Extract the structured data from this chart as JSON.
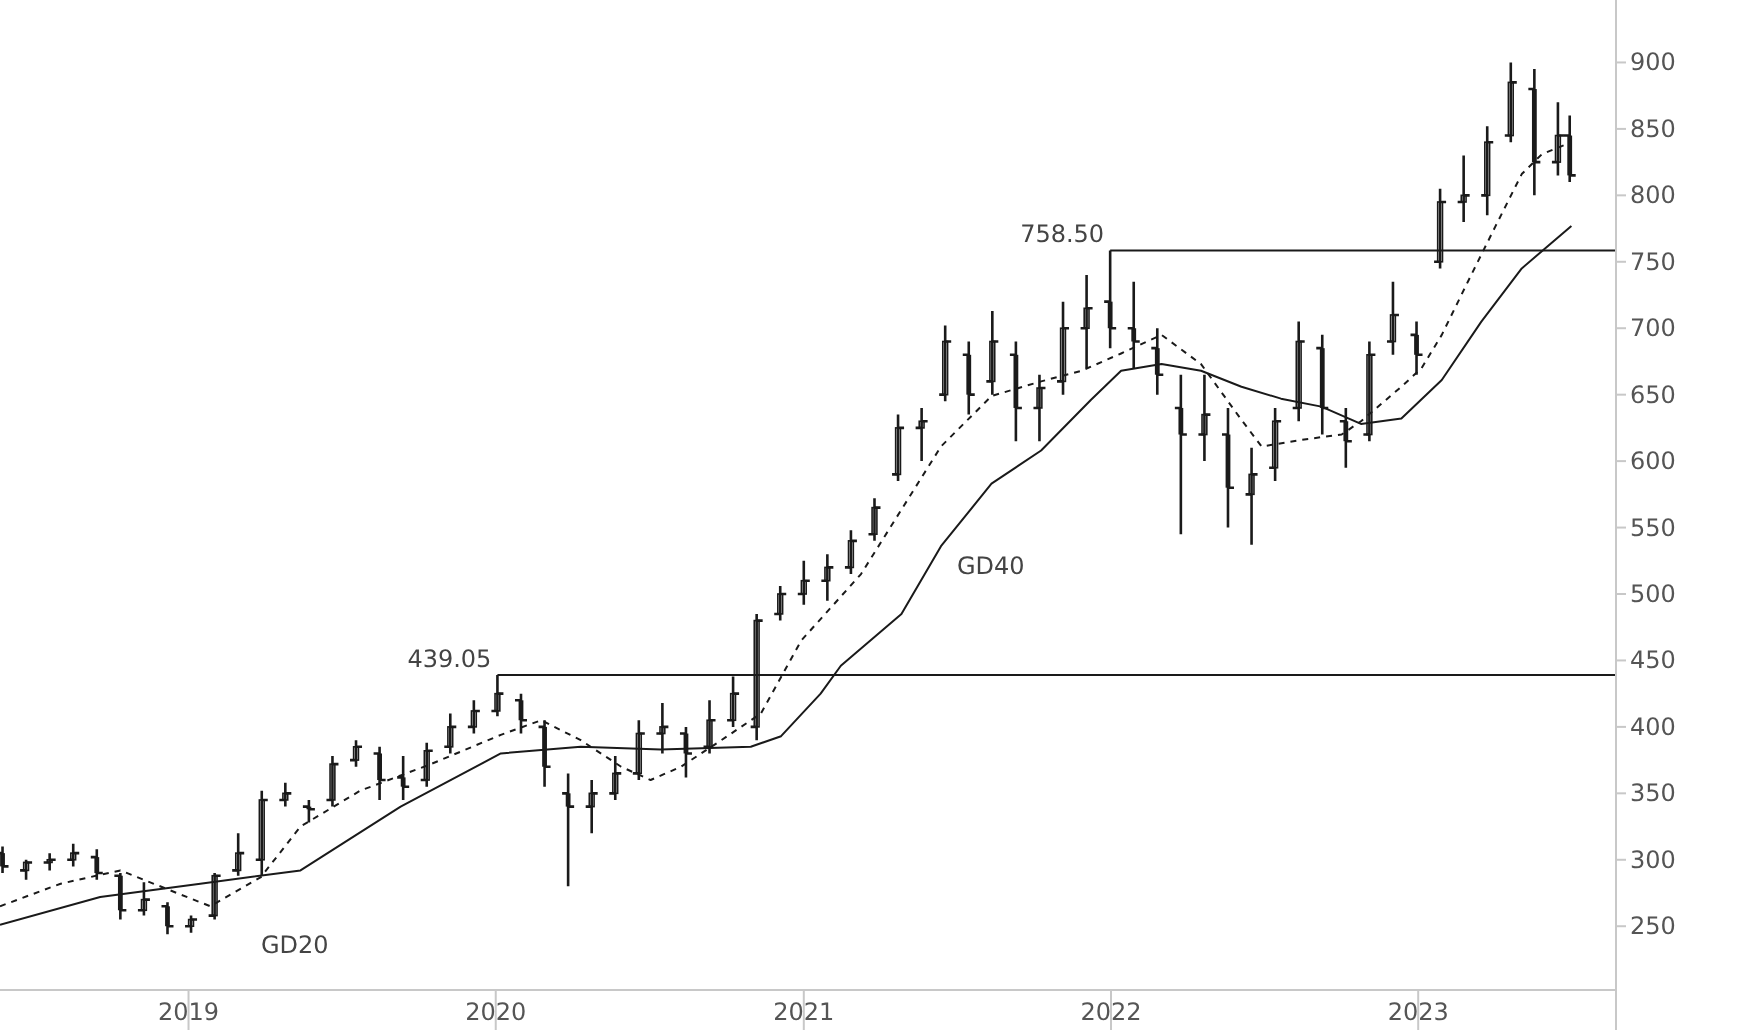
{
  "chart_data": {
    "type": "candlestick",
    "x": [
      "2018-05-25",
      "2018-06-22",
      "2018-07-20",
      "2018-08-17",
      "2018-09-14",
      "2018-10-12",
      "2018-11-09",
      "2018-12-07",
      "2019-01-04",
      "2019-02-01",
      "2019-03-01",
      "2019-03-29",
      "2019-04-26",
      "2019-05-24",
      "2019-06-21",
      "2019-07-19",
      "2019-08-16",
      "2019-09-13",
      "2019-10-11",
      "2019-11-08",
      "2019-12-06",
      "2020-01-03",
      "2020-01-31",
      "2020-02-28",
      "2020-03-27",
      "2020-04-24",
      "2020-05-22",
      "2020-06-19",
      "2020-07-17",
      "2020-08-14",
      "2020-09-11",
      "2020-10-09",
      "2020-11-06",
      "2020-12-04",
      "2021-01-01",
      "2021-01-29",
      "2021-02-26",
      "2021-03-26",
      "2021-04-23",
      "2021-05-21",
      "2021-06-18",
      "2021-07-16",
      "2021-08-13",
      "2021-09-10",
      "2021-10-08",
      "2021-11-05",
      "2021-12-03",
      "2021-12-31",
      "2022-01-28",
      "2022-02-25",
      "2022-03-25",
      "2022-04-22",
      "2022-05-20",
      "2022-06-17",
      "2022-07-15",
      "2022-08-12",
      "2022-09-09",
      "2022-10-07",
      "2022-11-04",
      "2022-12-02",
      "2022-12-30",
      "2023-01-27",
      "2023-02-24",
      "2023-03-24",
      "2023-04-21",
      "2023-05-19",
      "2023-06-16",
      "2023-06-30"
    ],
    "ohlc": [
      [
        305,
        310,
        290,
        295
      ],
      [
        292,
        300,
        285,
        298
      ],
      [
        298,
        305,
        292,
        300
      ],
      [
        300,
        312,
        295,
        305
      ],
      [
        302,
        308,
        285,
        290
      ],
      [
        288,
        290,
        255,
        262
      ],
      [
        262,
        283,
        258,
        270
      ],
      [
        265,
        268,
        244,
        250
      ],
      [
        250,
        258,
        245,
        255
      ],
      [
        258,
        290,
        255,
        288
      ],
      [
        292,
        320,
        288,
        305
      ],
      [
        300,
        352,
        288,
        345
      ],
      [
        345,
        358,
        340,
        350
      ],
      [
        340,
        345,
        328,
        338
      ],
      [
        345,
        378,
        340,
        372
      ],
      [
        375,
        390,
        370,
        385
      ],
      [
        380,
        385,
        345,
        360
      ],
      [
        362,
        378,
        345,
        355
      ],
      [
        360,
        388,
        355,
        382
      ],
      [
        385,
        410,
        380,
        400
      ],
      [
        400,
        420,
        395,
        412
      ],
      [
        412,
        439.05,
        408,
        425
      ],
      [
        420,
        425,
        395,
        405
      ],
      [
        400,
        405,
        355,
        370
      ],
      [
        350,
        365,
        280,
        340
      ],
      [
        340,
        360,
        320,
        350
      ],
      [
        350,
        378,
        345,
        365
      ],
      [
        365,
        405,
        360,
        395
      ],
      [
        395,
        418,
        380,
        400
      ],
      [
        395,
        400,
        362,
        380
      ],
      [
        385,
        420,
        380,
        405
      ],
      [
        405,
        438,
        400,
        425
      ],
      [
        400,
        485,
        390,
        480
      ],
      [
        485,
        506,
        480,
        500
      ],
      [
        500,
        525,
        492,
        510
      ],
      [
        510,
        530,
        495,
        520
      ],
      [
        520,
        548,
        515,
        540
      ],
      [
        545,
        572,
        540,
        565
      ],
      [
        590,
        635,
        585,
        625
      ],
      [
        625,
        640,
        600,
        630
      ],
      [
        650,
        702,
        645,
        690
      ],
      [
        680,
        690,
        635,
        650
      ],
      [
        660,
        713,
        650,
        690
      ],
      [
        680,
        690,
        615,
        640
      ],
      [
        640,
        665,
        615,
        655
      ],
      [
        660,
        720,
        650,
        700
      ],
      [
        700,
        740,
        670,
        715
      ],
      [
        720,
        758.5,
        685,
        700
      ],
      [
        700,
        735,
        670,
        690
      ],
      [
        685,
        700,
        650,
        665
      ],
      [
        640,
        665,
        545,
        620
      ],
      [
        620,
        665,
        600,
        635
      ],
      [
        620,
        640,
        550,
        580
      ],
      [
        575,
        610,
        537,
        590
      ],
      [
        595,
        640,
        585,
        630
      ],
      [
        640,
        705,
        630,
        690
      ],
      [
        685,
        695,
        620,
        640
      ],
      [
        630,
        640,
        595,
        615
      ],
      [
        620,
        690,
        615,
        680
      ],
      [
        690,
        735,
        680,
        710
      ],
      [
        695,
        705,
        665,
        680
      ],
      [
        750,
        805,
        745,
        795
      ],
      [
        795,
        830,
        780,
        800
      ],
      [
        800,
        852,
        785,
        840
      ],
      [
        845,
        900,
        840,
        885
      ],
      [
        880,
        895,
        800,
        825
      ],
      [
        825,
        870,
        815,
        845
      ],
      [
        845,
        860,
        810,
        815
      ]
    ],
    "color": "#1a1a1a",
    "series": [
      {
        "name": "GD20",
        "type": "line",
        "color": "#1a1a1a",
        "line_style": "dashed",
        "x": [
          "2018-05-22",
          "2018-08-02",
          "2018-10-12",
          "2018-12-22",
          "2019-01-27",
          "2019-03-28",
          "2019-05-14",
          "2019-07-24",
          "2019-10-16",
          "2020-01-07",
          "2020-02-24",
          "2020-04-11",
          "2020-05-29",
          "2020-07-03",
          "2020-08-08",
          "2020-09-25",
          "2020-11-11",
          "2020-12-29",
          "2021-03-10",
          "2021-06-13",
          "2021-08-12",
          "2021-10-10",
          "2021-11-27",
          "2022-01-13",
          "2022-03-02",
          "2022-04-18",
          "2022-06-05",
          "2022-06-29",
          "2022-08-15",
          "2022-10-02",
          "2022-10-25",
          "2022-12-12",
          "2023-01-05",
          "2023-01-29",
          "2023-03-01",
          "2023-04-03",
          "2023-05-04",
          "2023-05-28",
          "2023-07-02"
        ],
        "values": [
          265,
          282,
          292,
          274,
          265,
          287,
          325,
          352,
          372,
          394,
          405,
          390,
          370,
          360,
          370,
          390,
          410,
          465,
          515,
          611,
          649,
          660,
          668,
          681,
          695,
          673,
          631,
          611,
          616,
          620,
          630,
          656,
          670,
          695,
          735,
          777,
          816,
          831,
          840
        ]
      },
      {
        "name": "GD40",
        "type": "line",
        "color": "#1a1a1a",
        "line_style": "solid",
        "x": [
          "2018-05-22",
          "2018-09-18",
          "2019-01-15",
          "2019-05-14",
          "2019-09-10",
          "2020-01-07",
          "2020-04-11",
          "2020-07-15",
          "2020-10-30",
          "2020-12-05",
          "2021-01-21",
          "2021-02-14",
          "2021-04-27",
          "2021-06-13",
          "2021-08-12",
          "2021-10-10",
          "2021-12-08",
          "2022-01-13",
          "2022-03-02",
          "2022-04-18",
          "2022-06-05",
          "2022-07-22",
          "2022-09-08",
          "2022-10-25",
          "2022-12-12",
          "2023-01-29",
          "2023-03-17",
          "2023-05-04",
          "2023-07-02"
        ],
        "values": [
          251,
          272,
          282,
          292,
          340,
          380,
          385,
          383,
          385,
          393,
          425,
          446,
          485,
          536,
          583,
          608,
          646,
          668,
          673,
          668,
          656,
          647,
          641,
          628,
          632,
          661,
          705,
          745,
          777
        ]
      }
    ],
    "ref_lines": [
      {
        "axis": "y",
        "value": 439.05,
        "label": "439.05"
      },
      {
        "axis": "y",
        "value": 758.5,
        "label": "758.50"
      }
    ],
    "xlim": [
      "2018-05-22",
      "2023-08-24"
    ],
    "xticks": [
      {
        "value": "2019-01-01",
        "label": "2019"
      },
      {
        "value": "2020-01-01",
        "label": "2020"
      },
      {
        "value": "2021-01-01",
        "label": "2021"
      },
      {
        "value": "2022-01-01",
        "label": "2022"
      },
      {
        "value": "2023-01-01",
        "label": "2023"
      }
    ],
    "ylim": [
      202,
      947
    ],
    "yticks": [
      250,
      300,
      350,
      400,
      450,
      500,
      550,
      600,
      650,
      700,
      750,
      800,
      850,
      900
    ],
    "grid": false,
    "marker": "none"
  }
}
